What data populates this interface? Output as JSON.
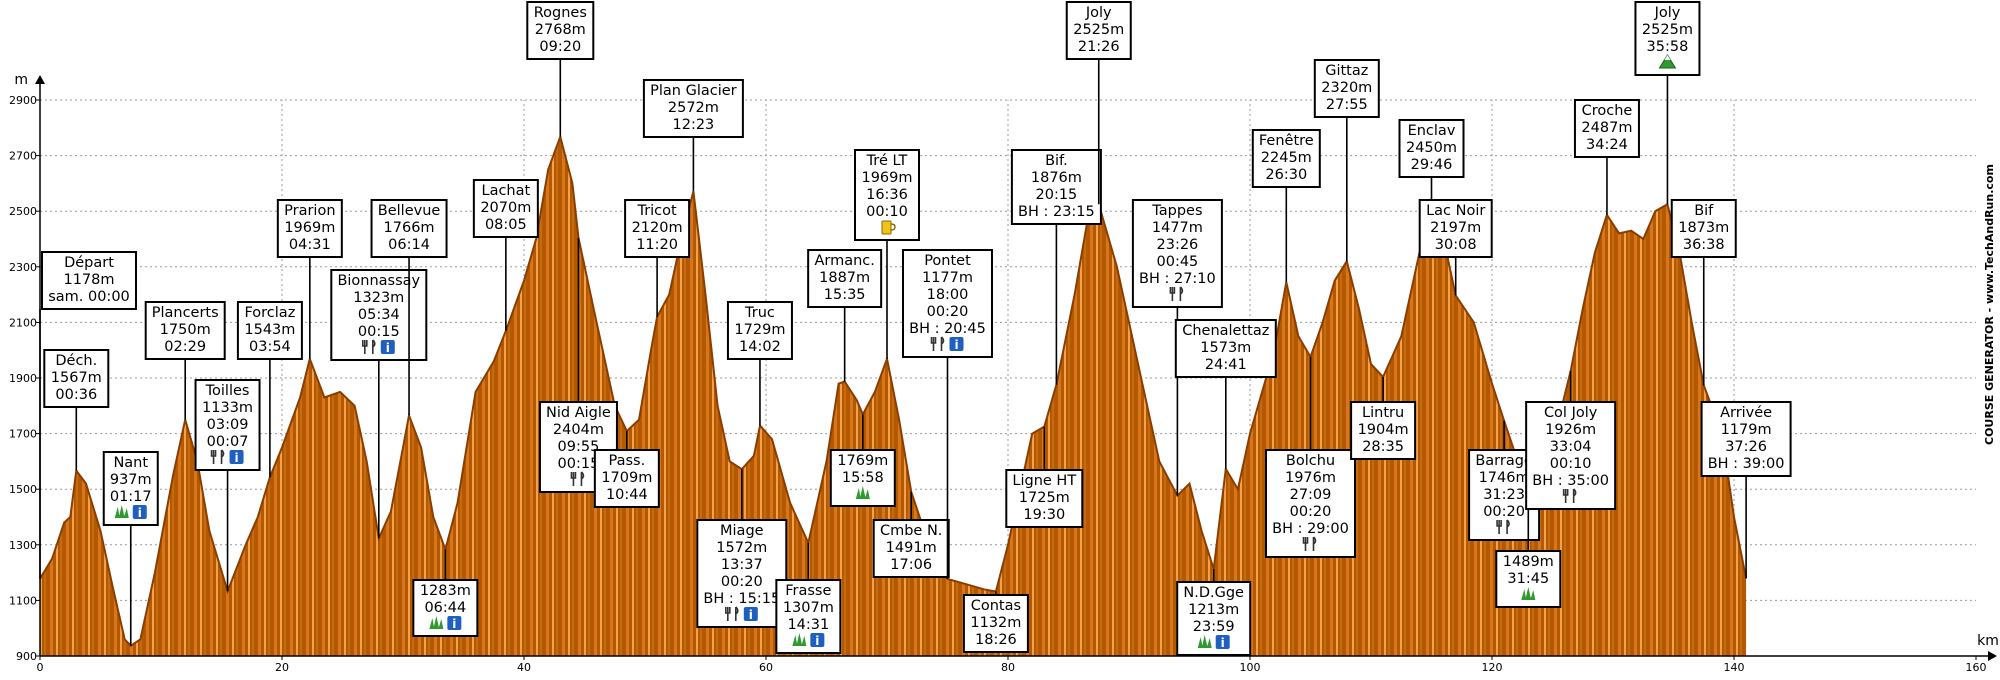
{
  "chart_data": {
    "type": "area",
    "xlabel": "km",
    "ylabel": "m",
    "xlim": [
      0,
      160
    ],
    "ylim": [
      900,
      2900
    ],
    "x_ticks": [
      0,
      20,
      40,
      60,
      80,
      100,
      120,
      140,
      160
    ],
    "y_ticks": [
      900,
      1100,
      1300,
      1500,
      1700,
      1900,
      2100,
      2300,
      2500,
      2700,
      2900
    ],
    "grid": true,
    "credit": "COURSE GENERATOR - www.TechAndRun.com",
    "colors": {
      "fill_dark": "#b35a00",
      "fill_light": "#f5a04a",
      "outline": "#8a3d00"
    },
    "profile": [
      [
        0,
        1178
      ],
      [
        1,
        1250
      ],
      [
        2,
        1380
      ],
      [
        2.5,
        1400
      ],
      [
        3,
        1567
      ],
      [
        3.8,
        1520
      ],
      [
        5,
        1350
      ],
      [
        6,
        1150
      ],
      [
        7,
        960
      ],
      [
        7.5,
        937
      ],
      [
        8.3,
        960
      ],
      [
        9.5,
        1200
      ],
      [
        11,
        1550
      ],
      [
        12,
        1750
      ],
      [
        13,
        1600
      ],
      [
        14,
        1350
      ],
      [
        15.5,
        1133
      ],
      [
        17,
        1300
      ],
      [
        18,
        1400
      ],
      [
        19,
        1543
      ],
      [
        20,
        1650
      ],
      [
        21.5,
        1830
      ],
      [
        22.3,
        1969
      ],
      [
        23.5,
        1830
      ],
      [
        24.8,
        1850
      ],
      [
        26,
        1800
      ],
      [
        27,
        1600
      ],
      [
        28,
        1323
      ],
      [
        29,
        1420
      ],
      [
        30,
        1650
      ],
      [
        30.5,
        1766
      ],
      [
        31.5,
        1650
      ],
      [
        32.5,
        1400
      ],
      [
        33.5,
        1283
      ],
      [
        34.5,
        1450
      ],
      [
        36,
        1850
      ],
      [
        37.5,
        1960
      ],
      [
        38.5,
        2070
      ],
      [
        40,
        2250
      ],
      [
        41,
        2400
      ],
      [
        42,
        2650
      ],
      [
        43,
        2768
      ],
      [
        44,
        2600
      ],
      [
        44.5,
        2404
      ],
      [
        46,
        2100
      ],
      [
        47.5,
        1800
      ],
      [
        48.5,
        1709
      ],
      [
        49.5,
        1750
      ],
      [
        50.5,
        2000
      ],
      [
        51,
        2120
      ],
      [
        52,
        2200
      ],
      [
        53,
        2400
      ],
      [
        54,
        2572
      ],
      [
        55,
        2200
      ],
      [
        56,
        1800
      ],
      [
        57,
        1600
      ],
      [
        58,
        1572
      ],
      [
        59,
        1620
      ],
      [
        59.5,
        1729
      ],
      [
        60.5,
        1680
      ],
      [
        62,
        1450
      ],
      [
        63.5,
        1307
      ],
      [
        65,
        1600
      ],
      [
        66,
        1880
      ],
      [
        66.5,
        1887
      ],
      [
        67.5,
        1820
      ],
      [
        68,
        1769
      ],
      [
        69,
        1850
      ],
      [
        70,
        1969
      ],
      [
        71,
        1750
      ],
      [
        72,
        1491
      ],
      [
        74,
        1230
      ],
      [
        75,
        1177
      ],
      [
        76,
        1165
      ],
      [
        78,
        1140
      ],
      [
        79,
        1132
      ],
      [
        80,
        1300
      ],
      [
        81,
        1500
      ],
      [
        82,
        1700
      ],
      [
        83,
        1725
      ],
      [
        84,
        1876
      ],
      [
        85.5,
        2200
      ],
      [
        86.5,
        2450
      ],
      [
        87.5,
        2525
      ],
      [
        89,
        2300
      ],
      [
        91,
        1900
      ],
      [
        92.5,
        1600
      ],
      [
        94,
        1477
      ],
      [
        95,
        1520
      ],
      [
        96,
        1350
      ],
      [
        97,
        1213
      ],
      [
        98,
        1573
      ],
      [
        99,
        1500
      ],
      [
        100,
        1700
      ],
      [
        102,
        2000
      ],
      [
        103,
        2245
      ],
      [
        104,
        2050
      ],
      [
        105,
        1976
      ],
      [
        106,
        2100
      ],
      [
        107,
        2250
      ],
      [
        108,
        2320
      ],
      [
        109,
        2150
      ],
      [
        110,
        1950
      ],
      [
        111,
        1904
      ],
      [
        112.5,
        2050
      ],
      [
        114,
        2350
      ],
      [
        115,
        2450
      ],
      [
        116,
        2400
      ],
      [
        117,
        2197
      ],
      [
        118.5,
        2100
      ],
      [
        120,
        1880
      ],
      [
        121,
        1746
      ],
      [
        123,
        1489
      ],
      [
        124,
        1620
      ],
      [
        125.5,
        1750
      ],
      [
        126.5,
        1926
      ],
      [
        127.5,
        2150
      ],
      [
        128.5,
        2350
      ],
      [
        129.5,
        2487
      ],
      [
        130.5,
        2420
      ],
      [
        131.5,
        2430
      ],
      [
        132.5,
        2400
      ],
      [
        133.5,
        2500
      ],
      [
        134.5,
        2525
      ],
      [
        135.5,
        2350
      ],
      [
        136.5,
        2100
      ],
      [
        137.5,
        1873
      ],
      [
        139,
        1700
      ],
      [
        140,
        1400
      ],
      [
        141,
        1179
      ]
    ],
    "checkpoints": [
      {
        "name": "Départ",
        "km": 0,
        "alt": 1178,
        "lines": [
          "Départ",
          "1178m",
          "sam. 00:00"
        ]
      },
      {
        "name": "Déch.",
        "km": 3,
        "alt": 1567,
        "lines": [
          "Déch.",
          "1567m",
          "00:36"
        ]
      },
      {
        "name": "Nant",
        "km": 7.5,
        "alt": 937,
        "lines": [
          "Nant",
          "937m",
          "01:17"
        ],
        "icons": [
          "grass",
          "info"
        ]
      },
      {
        "name": "Plancerts",
        "km": 12,
        "alt": 1750,
        "lines": [
          "Plancerts",
          "1750m",
          "02:29"
        ]
      },
      {
        "name": "Toilles",
        "km": 15.5,
        "alt": 1133,
        "lines": [
          "Toilles",
          "1133m",
          "03:09",
          "00:07"
        ],
        "icons": [
          "food",
          "info"
        ]
      },
      {
        "name": "Forclaz",
        "km": 19,
        "alt": 1543,
        "lines": [
          "Forclaz",
          "1543m",
          "03:54"
        ]
      },
      {
        "name": "Prarion",
        "km": 22.3,
        "alt": 1969,
        "lines": [
          "Prarion",
          "1969m",
          "04:31"
        ]
      },
      {
        "name": "Bionnassay",
        "km": 28,
        "alt": 1323,
        "lines": [
          "Bionnassay",
          "1323m",
          "05:34",
          "00:15"
        ],
        "icons": [
          "food",
          "info"
        ]
      },
      {
        "name": "Bellevue",
        "km": 30.5,
        "alt": 1766,
        "lines": [
          "Bellevue",
          "1766m",
          "06:14"
        ]
      },
      {
        "name": "1283m",
        "km": 33.5,
        "alt": 1283,
        "lines": [
          "1283m",
          "06:44"
        ],
        "icons": [
          "grass",
          "info"
        ]
      },
      {
        "name": "Lachat",
        "km": 38.5,
        "alt": 2070,
        "lines": [
          "Lachat",
          "2070m",
          "08:05"
        ]
      },
      {
        "name": "Rognes",
        "km": 43,
        "alt": 2768,
        "lines": [
          "Rognes",
          "2768m",
          "09:20"
        ]
      },
      {
        "name": "Nid Aigle",
        "km": 44.5,
        "alt": 2404,
        "lines": [
          "Nid Aigle",
          "2404m",
          "09:55",
          "00:15"
        ],
        "icons": [
          "food"
        ]
      },
      {
        "name": "Pass.",
        "km": 48.5,
        "alt": 1709,
        "lines": [
          "Pass.",
          "1709m",
          "10:44"
        ]
      },
      {
        "name": "Tricot",
        "km": 51,
        "alt": 2120,
        "lines": [
          "Tricot",
          "2120m",
          "11:20"
        ]
      },
      {
        "name": "Plan Glacier",
        "km": 54,
        "alt": 2572,
        "lines": [
          "Plan Glacier",
          "2572m",
          "12:23"
        ]
      },
      {
        "name": "Miage",
        "km": 58,
        "alt": 1572,
        "lines": [
          "Miage",
          "1572m",
          "13:37",
          "00:20",
          "BH : 15:15"
        ],
        "icons": [
          "food",
          "info"
        ]
      },
      {
        "name": "Truc",
        "km": 59.5,
        "alt": 1729,
        "lines": [
          "Truc",
          "1729m",
          "14:02"
        ]
      },
      {
        "name": "Frasse",
        "km": 63.5,
        "alt": 1307,
        "lines": [
          "Frasse",
          "1307m",
          "14:31"
        ],
        "icons": [
          "grass",
          "info"
        ]
      },
      {
        "name": "Armanc.",
        "km": 66.5,
        "alt": 1887,
        "lines": [
          "Armanc.",
          "1887m",
          "15:35"
        ]
      },
      {
        "name": "1769m",
        "km": 68,
        "alt": 1769,
        "lines": [
          "1769m",
          "15:58"
        ],
        "icons": [
          "grass"
        ]
      },
      {
        "name": "Tré LT",
        "km": 70,
        "alt": 1969,
        "lines": [
          "Tré LT",
          "1969m",
          "16:36",
          "00:10"
        ],
        "icons": [
          "drink"
        ]
      },
      {
        "name": "Cmbe N.",
        "km": 72,
        "alt": 1491,
        "lines": [
          "Cmbe N.",
          "1491m",
          "17:06"
        ]
      },
      {
        "name": "Pontet",
        "km": 75,
        "alt": 1177,
        "lines": [
          "Pontet",
          "1177m",
          "18:00",
          "00:20",
          "BH : 20:45"
        ],
        "icons": [
          "food",
          "info"
        ]
      },
      {
        "name": "Contas",
        "km": 79,
        "alt": 1132,
        "lines": [
          "Contas",
          "1132m",
          "18:26"
        ]
      },
      {
        "name": "Ligne HT",
        "km": 83,
        "alt": 1725,
        "lines": [
          "Ligne HT",
          "1725m",
          "19:30"
        ]
      },
      {
        "name": "Bif.",
        "km": 84,
        "alt": 1876,
        "lines": [
          "Bif.",
          "1876m",
          "20:15",
          "BH : 23:15"
        ]
      },
      {
        "name": "Joly",
        "km": 87.5,
        "alt": 2525,
        "lines": [
          "Joly",
          "2525m",
          "21:26"
        ]
      },
      {
        "name": "Tappes",
        "km": 94,
        "alt": 1477,
        "lines": [
          "Tappes",
          "1477m",
          "23:26",
          "00:45",
          "BH : 27:10"
        ],
        "icons": [
          "food"
        ]
      },
      {
        "name": "N.D.Gge",
        "km": 97,
        "alt": 1213,
        "lines": [
          "N.D.Gge",
          "1213m",
          "23:59"
        ],
        "icons": [
          "grass",
          "info"
        ]
      },
      {
        "name": "Chenalettaz",
        "km": 98,
        "alt": 1573,
        "lines": [
          "Chenalettaz",
          "1573m",
          "24:41"
        ]
      },
      {
        "name": "Fenêtre",
        "km": 103,
        "alt": 2245,
        "lines": [
          "Fenêtre",
          "2245m",
          "26:30"
        ]
      },
      {
        "name": "Bolchu",
        "km": 105,
        "alt": 1976,
        "lines": [
          "Bolchu",
          "1976m",
          "27:09",
          "00:20",
          "BH : 29:00"
        ],
        "icons": [
          "food"
        ]
      },
      {
        "name": "Gittaz",
        "km": 108,
        "alt": 2320,
        "lines": [
          "Gittaz",
          "2320m",
          "27:55"
        ]
      },
      {
        "name": "Lintru",
        "km": 111,
        "alt": 1904,
        "lines": [
          "Lintru",
          "1904m",
          "28:35"
        ]
      },
      {
        "name": "Enclav",
        "km": 115,
        "alt": 2450,
        "lines": [
          "Enclav",
          "2450m",
          "29:46"
        ]
      },
      {
        "name": "Lac Noir",
        "km": 117,
        "alt": 2197,
        "lines": [
          "Lac Noir",
          "2197m",
          "30:08"
        ]
      },
      {
        "name": "Barrage",
        "km": 121,
        "alt": 1746,
        "lines": [
          "Barrage",
          "1746m",
          "31:23",
          "00:20"
        ],
        "icons": [
          "food"
        ]
      },
      {
        "name": "1489m",
        "km": 123,
        "alt": 1489,
        "lines": [
          "1489m",
          "31:45"
        ],
        "icons": [
          "grass"
        ]
      },
      {
        "name": "Col Joly",
        "km": 126.5,
        "alt": 1926,
        "lines": [
          "Col Joly",
          "1926m",
          "33:04",
          "00:10",
          "BH : 35:00"
        ],
        "icons": [
          "food"
        ]
      },
      {
        "name": "Croche",
        "km": 129.5,
        "alt": 2487,
        "lines": [
          "Croche",
          "2487m",
          "34:24"
        ]
      },
      {
        "name": "Joly",
        "km": 134.5,
        "alt": 2525,
        "lines": [
          "Joly",
          "2525m",
          "35:58"
        ],
        "icons": [
          "summit"
        ]
      },
      {
        "name": "Bif",
        "km": 137.5,
        "alt": 1873,
        "lines": [
          "Bif",
          "1873m",
          "36:38"
        ]
      },
      {
        "name": "Arrivée",
        "km": 141,
        "alt": 1179,
        "lines": [
          "Arrivée",
          "1179m",
          "37:26",
          "BH : 39:00"
        ]
      }
    ]
  }
}
